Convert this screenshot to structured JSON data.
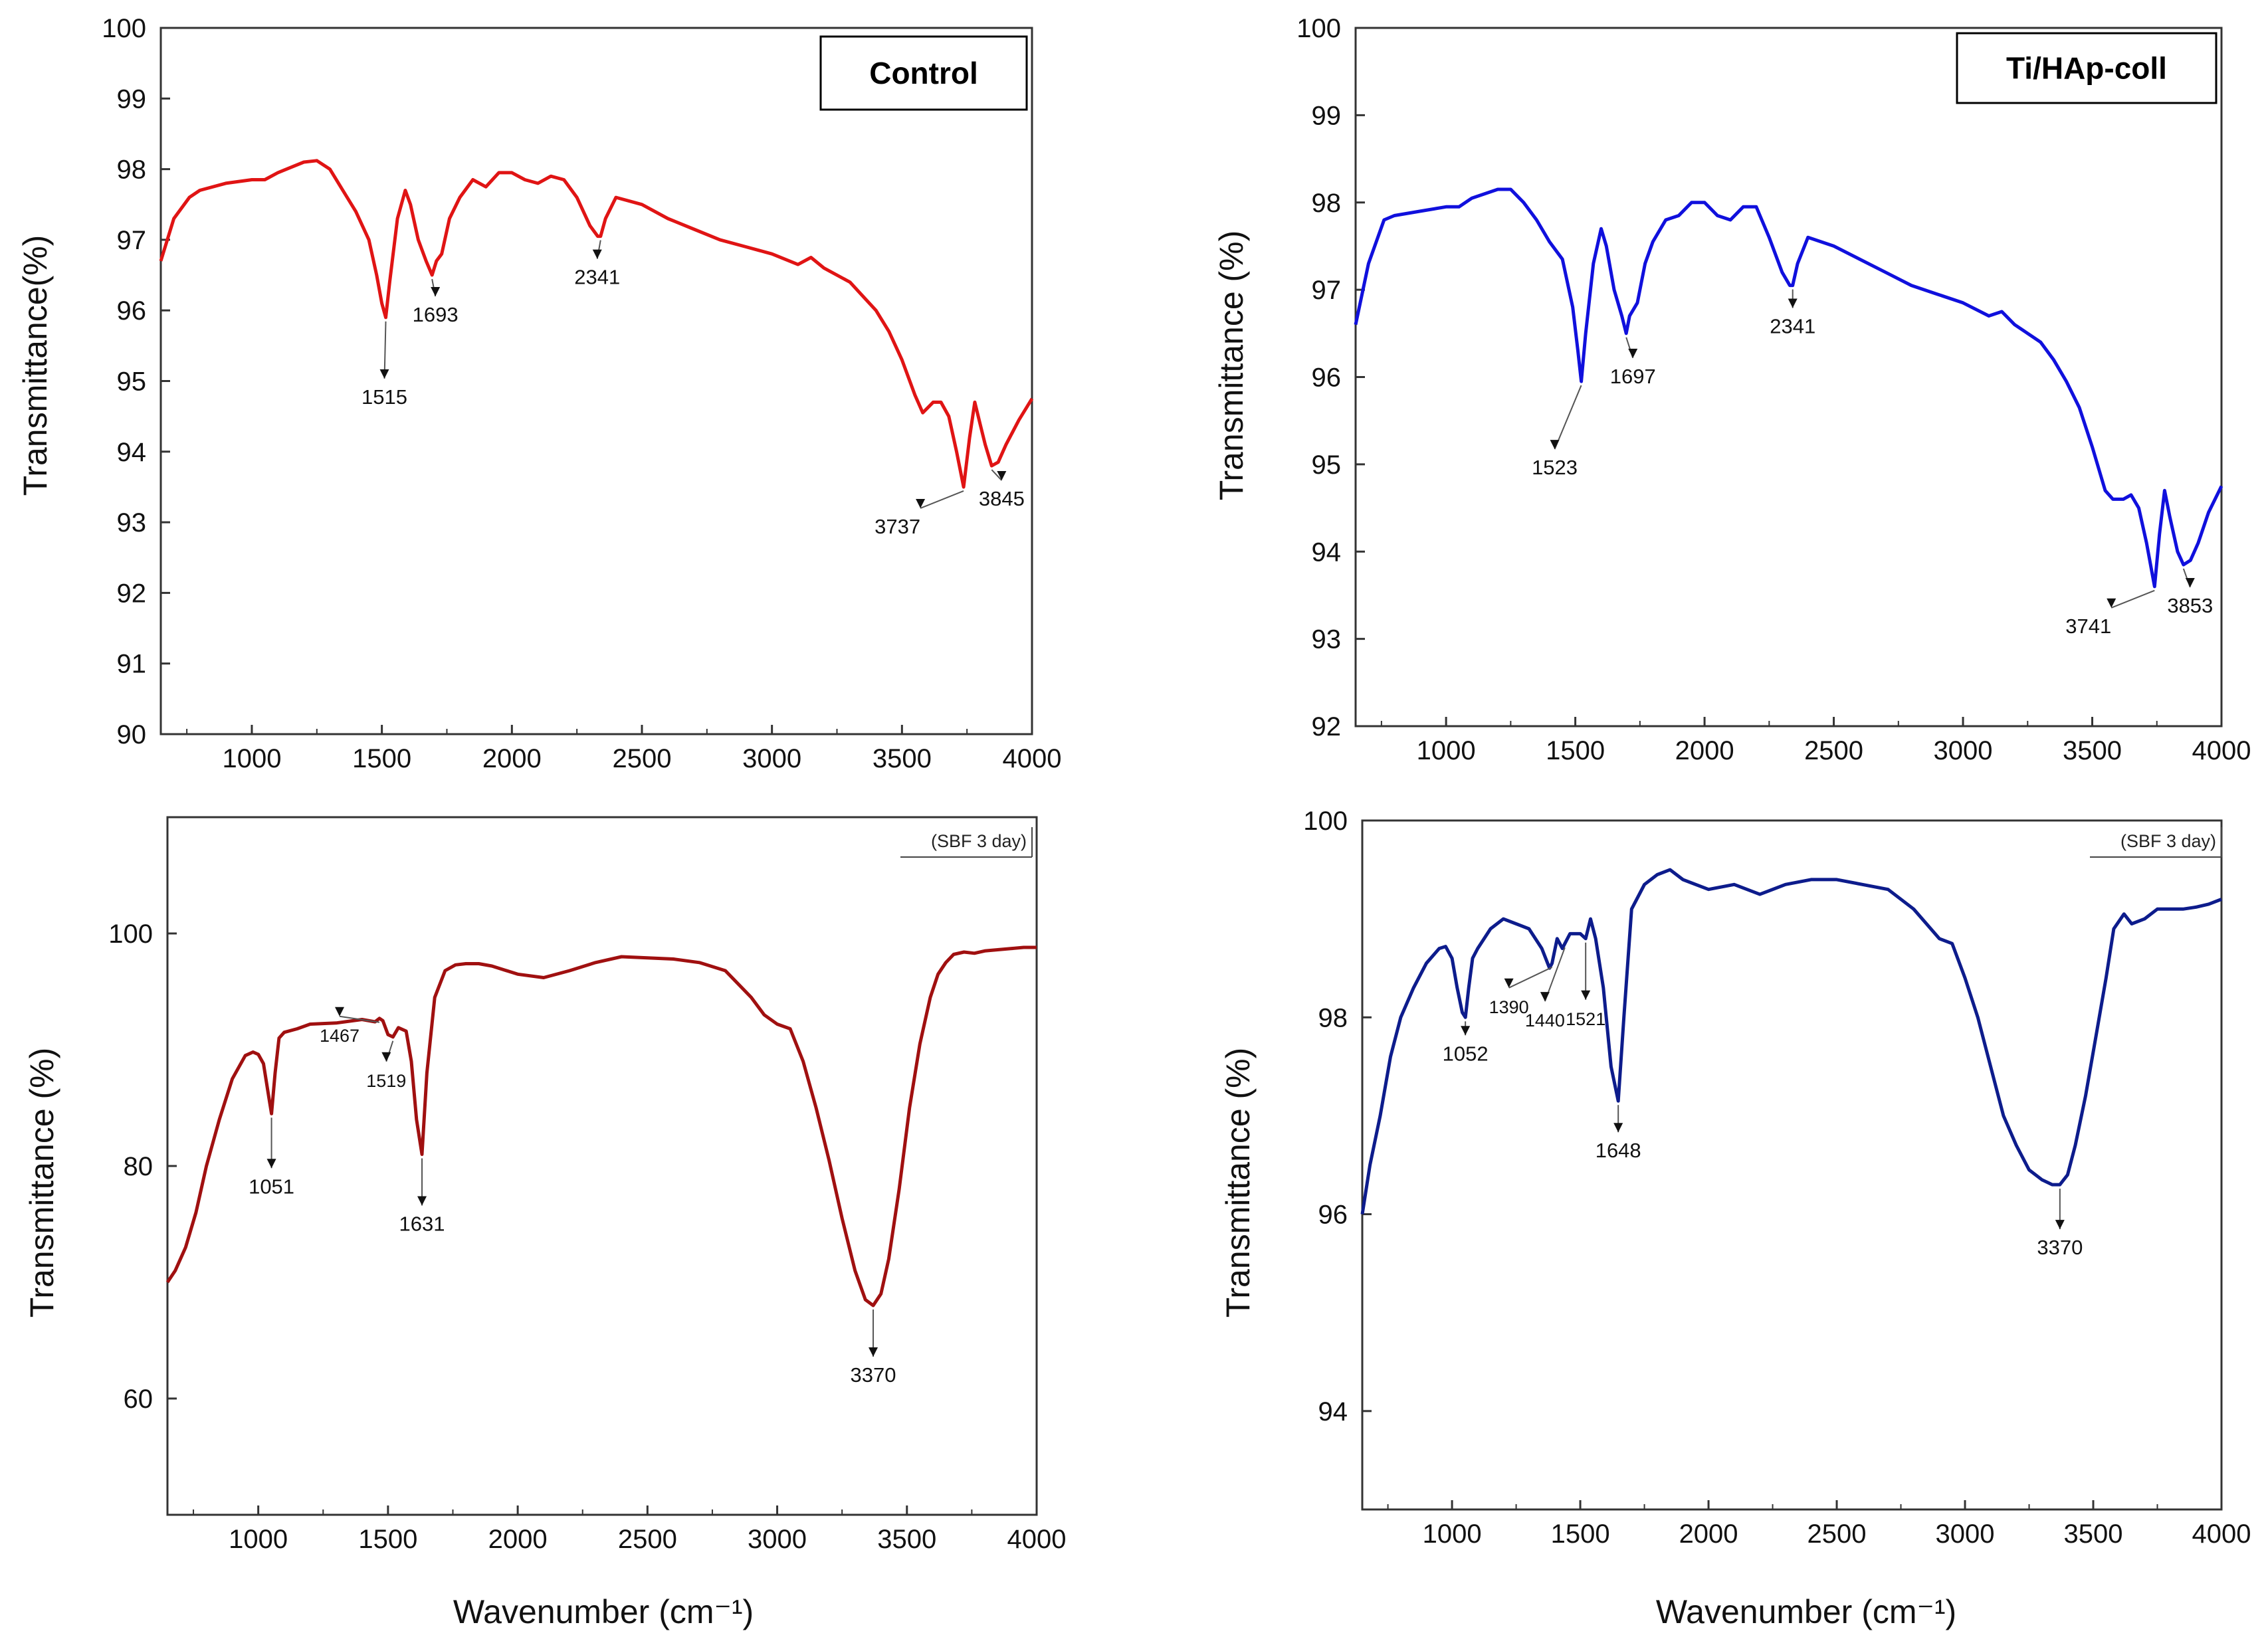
{
  "chart_data": [
    {
      "type": "line",
      "label_box": "Control",
      "ylabel": "Transmittance(%)",
      "xlim": [
        650,
        4000
      ],
      "ylim": [
        90,
        100
      ],
      "x_ticks": [
        "1000",
        "1500",
        "2000",
        "2500",
        "3000",
        "3500",
        "4000"
      ],
      "y_ticks": [
        "90",
        "91",
        "92",
        "93",
        "94",
        "95",
        "96",
        "97",
        "98",
        "99",
        "100"
      ],
      "color": "#e01414",
      "series": [
        {
          "x": [
            650,
            700,
            760,
            800,
            900,
            1000,
            1050,
            1100,
            1200,
            1250,
            1300,
            1350,
            1400,
            1450,
            1480,
            1500,
            1515,
            1530,
            1560,
            1590,
            1610,
            1640,
            1670,
            1693,
            1710,
            1730,
            1760,
            1800,
            1850,
            1900,
            1950,
            2000,
            2050,
            2100,
            2150,
            2200,
            2250,
            2300,
            2330,
            2341,
            2360,
            2400,
            2500,
            2600,
            2700,
            2800,
            2900,
            3000,
            3100,
            3150,
            3200,
            3300,
            3350,
            3400,
            3450,
            3500,
            3550,
            3580,
            3620,
            3650,
            3680,
            3710,
            3737,
            3760,
            3780,
            3800,
            3820,
            3845,
            3870,
            3900,
            3950,
            4000
          ],
          "y": [
            96.7,
            97.3,
            97.6,
            97.7,
            97.8,
            97.85,
            97.85,
            97.95,
            98.1,
            98.12,
            98.0,
            97.7,
            97.4,
            97.0,
            96.5,
            96.1,
            95.9,
            96.4,
            97.3,
            97.7,
            97.5,
            97.0,
            96.7,
            96.5,
            96.7,
            96.8,
            97.3,
            97.6,
            97.85,
            97.75,
            97.95,
            97.95,
            97.85,
            97.8,
            97.9,
            97.85,
            97.6,
            97.2,
            97.05,
            97.05,
            97.3,
            97.6,
            97.5,
            97.3,
            97.15,
            97.0,
            96.9,
            96.8,
            96.65,
            96.75,
            96.6,
            96.4,
            96.2,
            96.0,
            95.7,
            95.3,
            94.8,
            94.55,
            94.7,
            94.7,
            94.5,
            94.0,
            93.5,
            94.2,
            94.7,
            94.4,
            94.1,
            93.8,
            93.85,
            94.1,
            94.45,
            94.75
          ]
        }
      ],
      "peaks": [
        {
          "x": 1515,
          "label": "1515"
        },
        {
          "x": 1693,
          "label": "1693"
        },
        {
          "x": 2341,
          "label": "2341"
        },
        {
          "x": 3737,
          "label": "3737"
        },
        {
          "x": 3845,
          "label": "3845"
        }
      ]
    },
    {
      "type": "line",
      "label_box": "Ti/HAp-coll",
      "ylabel": "Transmittance (%)",
      "xlim": [
        650,
        4000
      ],
      "ylim": [
        92,
        100
      ],
      "x_ticks": [
        "1000",
        "1500",
        "2000",
        "2500",
        "3000",
        "3500",
        "4000"
      ],
      "y_ticks": [
        "92",
        "93",
        "94",
        "95",
        "96",
        "97",
        "98",
        "99",
        "100"
      ],
      "color": "#1010dd",
      "series": [
        {
          "x": [
            650,
            700,
            760,
            800,
            900,
            1000,
            1050,
            1100,
            1200,
            1250,
            1300,
            1350,
            1400,
            1450,
            1490,
            1510,
            1523,
            1540,
            1570,
            1600,
            1620,
            1650,
            1680,
            1697,
            1710,
            1740,
            1770,
            1800,
            1850,
            1900,
            1950,
            2000,
            2050,
            2100,
            2150,
            2200,
            2250,
            2300,
            2330,
            2341,
            2360,
            2400,
            2500,
            2600,
            2700,
            2800,
            2900,
            3000,
            3100,
            3150,
            3200,
            3300,
            3350,
            3400,
            3450,
            3500,
            3550,
            3580,
            3620,
            3650,
            3680,
            3710,
            3741,
            3760,
            3780,
            3800,
            3830,
            3853,
            3880,
            3910,
            3950,
            4000
          ],
          "y": [
            96.6,
            97.3,
            97.8,
            97.85,
            97.9,
            97.95,
            97.95,
            98.05,
            98.15,
            98.15,
            98.0,
            97.8,
            97.55,
            97.35,
            96.8,
            96.3,
            95.95,
            96.5,
            97.3,
            97.7,
            97.5,
            97.0,
            96.7,
            96.5,
            96.7,
            96.85,
            97.3,
            97.55,
            97.8,
            97.85,
            98.0,
            98.0,
            97.85,
            97.8,
            97.95,
            97.95,
            97.6,
            97.2,
            97.05,
            97.05,
            97.3,
            97.6,
            97.5,
            97.35,
            97.2,
            97.05,
            96.95,
            96.85,
            96.7,
            96.75,
            96.6,
            96.4,
            96.2,
            95.95,
            95.65,
            95.2,
            94.7,
            94.6,
            94.6,
            94.65,
            94.5,
            94.1,
            93.6,
            94.2,
            94.7,
            94.4,
            94.0,
            93.85,
            93.9,
            94.1,
            94.45,
            94.75
          ]
        }
      ],
      "peaks": [
        {
          "x": 1523,
          "label": "1523"
        },
        {
          "x": 1697,
          "label": "1697"
        },
        {
          "x": 2341,
          "label": "2341"
        },
        {
          "x": 3741,
          "label": "3741"
        },
        {
          "x": 3853,
          "label": "3853"
        }
      ]
    },
    {
      "type": "line",
      "tag": "(SBF 3 day)",
      "ylabel": "Transmittance (%)",
      "xlabel": "Wavenumber (cm⁻¹)",
      "xlim": [
        650,
        4000
      ],
      "ylim": [
        50,
        110
      ],
      "x_ticks": [
        "1000",
        "1500",
        "2000",
        "2500",
        "3000",
        "3500",
        "4000"
      ],
      "y_ticks": [
        "60",
        "80",
        "100"
      ],
      "color": "#a01010",
      "series": [
        {
          "x": [
            650,
            680,
            720,
            760,
            800,
            850,
            900,
            950,
            980,
            1000,
            1020,
            1040,
            1051,
            1065,
            1080,
            1100,
            1150,
            1200,
            1300,
            1400,
            1450,
            1467,
            1480,
            1500,
            1519,
            1540,
            1570,
            1590,
            1610,
            1631,
            1650,
            1680,
            1720,
            1760,
            1800,
            1850,
            1900,
            2000,
            2100,
            2200,
            2300,
            2400,
            2500,
            2600,
            2700,
            2800,
            2900,
            2950,
            3000,
            3050,
            3100,
            3150,
            3200,
            3250,
            3300,
            3340,
            3370,
            3400,
            3430,
            3470,
            3510,
            3550,
            3590,
            3620,
            3650,
            3680,
            3720,
            3760,
            3800,
            3850,
            3900,
            3950,
            4000
          ],
          "y": [
            70,
            71,
            73,
            76,
            80,
            84,
            87.5,
            89.5,
            89.8,
            89.6,
            88.8,
            86,
            84.5,
            88,
            91,
            91.5,
            91.8,
            92.2,
            92.3,
            92.6,
            92.4,
            92.7,
            92.5,
            91.3,
            91.1,
            91.9,
            91.6,
            89,
            84,
            81,
            88,
            94.5,
            96.8,
            97.3,
            97.4,
            97.4,
            97.2,
            96.5,
            96.2,
            96.8,
            97.5,
            98.0,
            97.9,
            97.8,
            97.5,
            96.8,
            94.5,
            93,
            92.2,
            91.8,
            89,
            85,
            80.5,
            75.5,
            71,
            68.5,
            68,
            69,
            72,
            78,
            85,
            90.5,
            94.5,
            96.5,
            97.5,
            98.2,
            98.4,
            98.3,
            98.5,
            98.6,
            98.7,
            98.8,
            98.8
          ]
        }
      ],
      "peaks": [
        {
          "x": 1051,
          "label": "1051"
        },
        {
          "x": 1467,
          "label": "1467"
        },
        {
          "x": 1519,
          "label": "1519"
        },
        {
          "x": 1631,
          "label": "1631"
        },
        {
          "x": 3370,
          "label": "3370"
        }
      ]
    },
    {
      "type": "line",
      "tag": "(SBF 3 day)",
      "ylabel": "Transmittance (%)",
      "xlabel": "Wavenumber (cm⁻¹)",
      "xlim": [
        650,
        4000
      ],
      "ylim": [
        93,
        100
      ],
      "x_ticks": [
        "1000",
        "1500",
        "2000",
        "2500",
        "3000",
        "3500",
        "4000"
      ],
      "y_ticks": [
        "94",
        "96",
        "98",
        "100"
      ],
      "color": "#0d1c8c",
      "series": [
        {
          "x": [
            650,
            680,
            720,
            760,
            800,
            850,
            900,
            950,
            975,
            1000,
            1020,
            1040,
            1052,
            1065,
            1080,
            1100,
            1150,
            1200,
            1250,
            1300,
            1350,
            1380,
            1390,
            1410,
            1430,
            1440,
            1460,
            1500,
            1521,
            1540,
            1560,
            1590,
            1620,
            1648,
            1670,
            1700,
            1750,
            1800,
            1850,
            1900,
            2000,
            2100,
            2200,
            2300,
            2400,
            2500,
            2600,
            2700,
            2800,
            2850,
            2900,
            2950,
            3000,
            3050,
            3100,
            3150,
            3200,
            3250,
            3300,
            3340,
            3370,
            3400,
            3430,
            3470,
            3510,
            3550,
            3580,
            3620,
            3650,
            3700,
            3750,
            3800,
            3850,
            3900,
            3950,
            4000
          ],
          "y": [
            96.0,
            96.5,
            97.0,
            97.6,
            98.0,
            98.3,
            98.55,
            98.7,
            98.72,
            98.6,
            98.3,
            98.05,
            98.0,
            98.3,
            98.6,
            98.7,
            98.9,
            99.0,
            98.95,
            98.9,
            98.7,
            98.5,
            98.55,
            98.8,
            98.7,
            98.75,
            98.85,
            98.85,
            98.8,
            99.0,
            98.8,
            98.3,
            97.5,
            97.15,
            98.0,
            99.1,
            99.35,
            99.45,
            99.5,
            99.4,
            99.3,
            99.35,
            99.25,
            99.35,
            99.4,
            99.4,
            99.35,
            99.3,
            99.1,
            98.95,
            98.8,
            98.75,
            98.4,
            98.0,
            97.5,
            97.0,
            96.7,
            96.45,
            96.35,
            96.3,
            96.3,
            96.4,
            96.7,
            97.2,
            97.8,
            98.4,
            98.9,
            99.05,
            98.95,
            99.0,
            99.1,
            99.1,
            99.1,
            99.12,
            99.15,
            99.2
          ]
        }
      ],
      "peaks": [
        {
          "x": 1052,
          "label": "1052"
        },
        {
          "x": 1390,
          "label": "1390"
        },
        {
          "x": 1440,
          "label": "1440"
        },
        {
          "x": 1521,
          "label": "1521"
        },
        {
          "x": 1648,
          "label": "1648"
        },
        {
          "x": 3370,
          "label": "3370"
        }
      ]
    }
  ]
}
